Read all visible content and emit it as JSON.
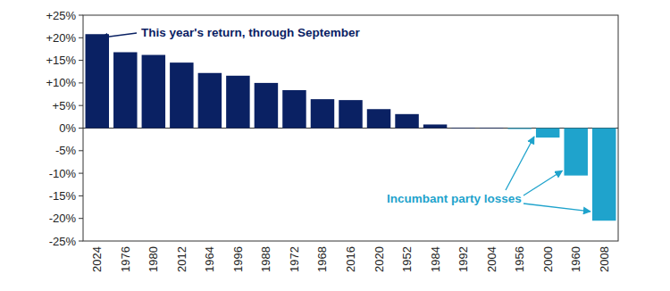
{
  "chart_data": {
    "type": "bar",
    "categories": [
      "2024",
      "1976",
      "1980",
      "2012",
      "1964",
      "1996",
      "1988",
      "1972",
      "1968",
      "2016",
      "2020",
      "1952",
      "1984",
      "1992",
      "2004",
      "1956",
      "2000",
      "1960",
      "2008"
    ],
    "values": [
      20.8,
      16.8,
      16.2,
      14.5,
      12.2,
      11.6,
      10.0,
      8.4,
      6.4,
      6.2,
      4.2,
      3.1,
      0.8,
      0.1,
      0.1,
      -0.2,
      -2.1,
      -10.5,
      -20.5
    ],
    "colors": [
      "#0a2163",
      "#0a2163",
      "#0a2163",
      "#0a2163",
      "#0a2163",
      "#0a2163",
      "#0a2163",
      "#0a2163",
      "#0a2163",
      "#0a2163",
      "#0a2163",
      "#0a2163",
      "#0a2163",
      "#0a2163",
      "#0a2163",
      "#1fa3cc",
      "#1fa3cc",
      "#1fa3cc",
      "#1fa3cc"
    ],
    "ylim": [
      -25,
      25
    ],
    "yticks": [
      {
        "value": -25,
        "label": "-25%"
      },
      {
        "value": -20,
        "label": "-20%"
      },
      {
        "value": -15,
        "label": "-15%"
      },
      {
        "value": -10,
        "label": "-10%"
      },
      {
        "value": -5,
        "label": "-5%"
      },
      {
        "value": 0,
        "label": "0%"
      },
      {
        "value": 5,
        "label": "+5%"
      },
      {
        "value": 10,
        "label": "+10%"
      },
      {
        "value": 15,
        "label": "+15%"
      },
      {
        "value": 20,
        "label": "+20%"
      },
      {
        "value": 25,
        "label": "+25%"
      }
    ],
    "grid": false,
    "annotations": [
      {
        "text": "This year's return, through September",
        "color": "#0a2163"
      },
      {
        "text": "Incumbant party losses",
        "color": "#1fa3cc"
      }
    ]
  }
}
